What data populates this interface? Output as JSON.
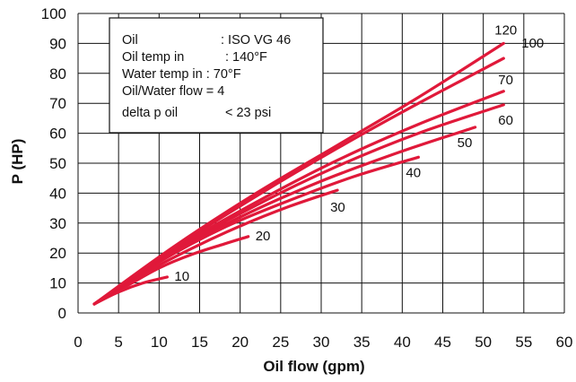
{
  "chart_data": {
    "type": "line",
    "title": "",
    "xlabel": "Oil flow (gpm)",
    "ylabel": "P (HP)",
    "xlim": [
      0,
      60
    ],
    "ylim": [
      0,
      100
    ],
    "xticks": [
      0,
      5,
      10,
      15,
      20,
      25,
      30,
      35,
      40,
      45,
      50,
      55,
      60
    ],
    "yticks": [
      0,
      10,
      20,
      30,
      40,
      50,
      60,
      70,
      80,
      90,
      100
    ],
    "grid": true,
    "line_color": "#e0193a",
    "legend_box": {
      "placement": "top-left",
      "lines": [
        {
          "name": "Oil",
          "value": ": ISO VG 46"
        },
        {
          "name": "Oil temp in",
          "value": ": 140°F"
        },
        {
          "name": "Water temp in : 70°F",
          "value": ""
        },
        {
          "name": "Oil/Water flow = 4",
          "value": ""
        },
        {
          "name": "delta p oil",
          "value": "< 23 psi"
        }
      ]
    },
    "series": [
      {
        "name": "10",
        "x": [
          2,
          5,
          8,
          11
        ],
        "y": [
          3,
          7,
          10,
          12
        ]
      },
      {
        "name": "20",
        "x": [
          2,
          6,
          10,
          14,
          18,
          21
        ],
        "y": [
          3,
          9,
          15,
          19.5,
          23,
          25.5
        ]
      },
      {
        "name": "30",
        "x": [
          2,
          8,
          14,
          20,
          26,
          32
        ],
        "y": [
          3,
          13,
          21.5,
          29,
          35.5,
          41
        ]
      },
      {
        "name": "40",
        "x": [
          2,
          10,
          18,
          26,
          34,
          42
        ],
        "y": [
          3,
          17,
          28.5,
          37.5,
          45.5,
          52
        ]
      },
      {
        "name": "50",
        "x": [
          2,
          10,
          20,
          30,
          40,
          49
        ],
        "y": [
          3,
          17.5,
          32,
          44,
          54,
          62
        ]
      },
      {
        "name": "60",
        "x": [
          2,
          12,
          22,
          32,
          42,
          52.5
        ],
        "y": [
          3,
          21,
          36,
          49,
          60,
          69.5
        ]
      },
      {
        "name": "70",
        "x": [
          2,
          12,
          22,
          32,
          42,
          52.5
        ],
        "y": [
          3,
          21.5,
          37,
          51,
          63,
          74
        ]
      },
      {
        "name": "100",
        "x": [
          2,
          12,
          22,
          32,
          42,
          52.5
        ],
        "y": [
          3,
          22,
          39,
          55,
          70,
          85
        ]
      },
      {
        "name": "120",
        "x": [
          2,
          12,
          22,
          32,
          42,
          52.5
        ],
        "y": [
          3,
          22.5,
          40,
          56,
          72,
          90
        ]
      }
    ]
  }
}
